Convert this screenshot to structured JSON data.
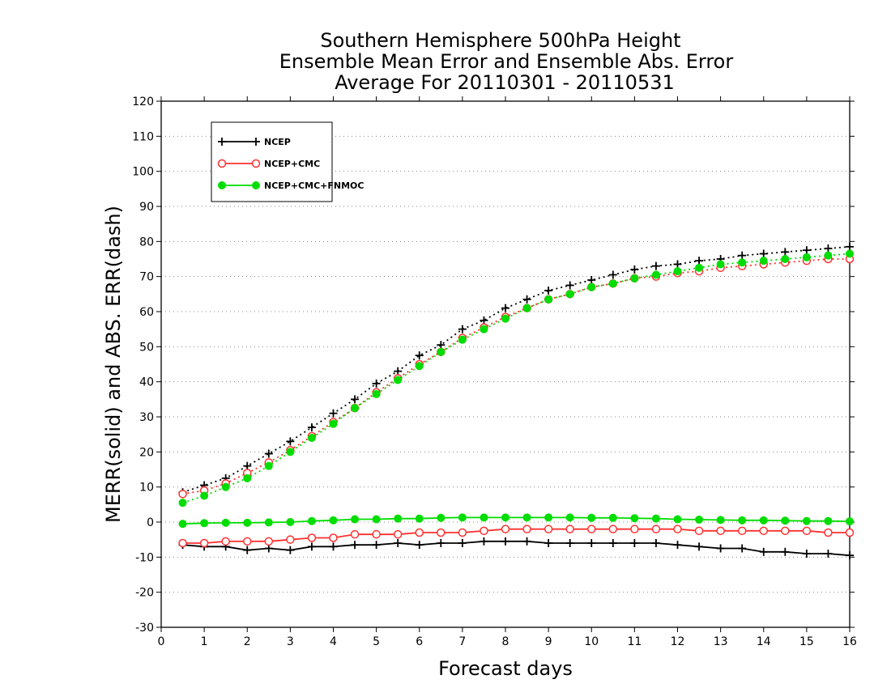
{
  "chart_data": {
    "type": "line",
    "title": [
      "Southern Hemisphere 500hPa Height",
      "Ensemble Mean Error and Ensemble Abs. Error",
      "Average For 20110301 - 20110531"
    ],
    "xlabel": "Forecast days",
    "ylabel": "MERR(solid) and ABS. ERR(dash)",
    "xlim": [
      0,
      16
    ],
    "ylim": [
      -30,
      120
    ],
    "xticks": [
      0,
      1,
      2,
      3,
      4,
      5,
      6,
      7,
      8,
      9,
      10,
      11,
      12,
      13,
      14,
      15,
      16
    ],
    "yticks": [
      -30,
      -20,
      -10,
      0,
      10,
      20,
      30,
      40,
      50,
      60,
      70,
      80,
      90,
      100,
      110,
      120
    ],
    "grid": "horizontal dotted",
    "legend_position": "top-left",
    "x": [
      0.5,
      1,
      1.5,
      2,
      2.5,
      3,
      3.5,
      4,
      4.5,
      5,
      5.5,
      6,
      6.5,
      7,
      7.5,
      8,
      8.5,
      9,
      9.5,
      10,
      10.5,
      11,
      11.5,
      12,
      12.5,
      13,
      13.5,
      14,
      14.5,
      15,
      15.5,
      16
    ],
    "series": [
      {
        "name": "NCEP",
        "color": "#000000",
        "marker": "plus",
        "abs_err": [
          8.5,
          10.5,
          12.5,
          16.0,
          19.5,
          23.0,
          27.0,
          31.0,
          35.0,
          39.5,
          43.0,
          47.5,
          50.5,
          55.0,
          57.5,
          61.0,
          63.5,
          66.0,
          67.5,
          69.0,
          70.5,
          72.0,
          73.0,
          73.5,
          74.5,
          75.0,
          76.0,
          76.5,
          77.0,
          77.5,
          78.0,
          78.5
        ],
        "mean_err": [
          -6.5,
          -7.0,
          -7.0,
          -8.0,
          -7.5,
          -8.0,
          -7.0,
          -7.0,
          -6.5,
          -6.5,
          -6.0,
          -6.5,
          -6.0,
          -6.0,
          -5.5,
          -5.5,
          -5.5,
          -6.0,
          -6.0,
          -6.0,
          -6.0,
          -6.0,
          -6.0,
          -6.5,
          -7.0,
          -7.5,
          -7.5,
          -8.5,
          -8.5,
          -9.0,
          -9.0,
          -9.5
        ]
      },
      {
        "name": "NCEP+CMC",
        "color": "#ff3030",
        "marker": "open-circle",
        "abs_err": [
          8.0,
          9.0,
          11.0,
          14.0,
          17.0,
          20.5,
          24.5,
          28.5,
          32.5,
          37.0,
          41.0,
          45.0,
          48.5,
          52.5,
          55.5,
          58.5,
          61.0,
          63.5,
          65.0,
          67.0,
          68.0,
          69.5,
          70.0,
          71.0,
          71.5,
          72.5,
          73.0,
          73.5,
          74.0,
          74.5,
          75.0,
          75.0
        ],
        "mean_err": [
          -6.0,
          -6.0,
          -5.5,
          -5.5,
          -5.5,
          -5.0,
          -4.5,
          -4.5,
          -3.5,
          -3.5,
          -3.5,
          -3.0,
          -3.0,
          -3.0,
          -2.5,
          -2.0,
          -2.0,
          -2.0,
          -2.0,
          -2.0,
          -2.0,
          -2.0,
          -2.0,
          -2.0,
          -2.5,
          -2.5,
          -2.5,
          -2.5,
          -2.5,
          -2.5,
          -3.0,
          -3.0
        ]
      },
      {
        "name": "NCEP+CMC+FNMOC",
        "color": "#00dd00",
        "marker": "filled-circle",
        "abs_err": [
          5.5,
          7.5,
          10.0,
          12.5,
          16.0,
          20.0,
          24.0,
          28.0,
          32.5,
          36.5,
          40.5,
          44.5,
          48.5,
          52.0,
          55.0,
          58.0,
          61.0,
          63.5,
          65.0,
          67.0,
          68.0,
          69.5,
          70.5,
          71.5,
          72.5,
          73.5,
          74.0,
          74.5,
          75.0,
          75.5,
          76.0,
          76.5
        ],
        "mean_err": [
          -0.5,
          -0.3,
          -0.2,
          -0.2,
          -0.1,
          0.0,
          0.3,
          0.5,
          0.8,
          0.8,
          1.0,
          1.0,
          1.2,
          1.3,
          1.3,
          1.3,
          1.3,
          1.3,
          1.3,
          1.2,
          1.2,
          1.1,
          1.0,
          0.8,
          0.7,
          0.6,
          0.5,
          0.5,
          0.4,
          0.3,
          0.3,
          0.2
        ]
      }
    ]
  }
}
